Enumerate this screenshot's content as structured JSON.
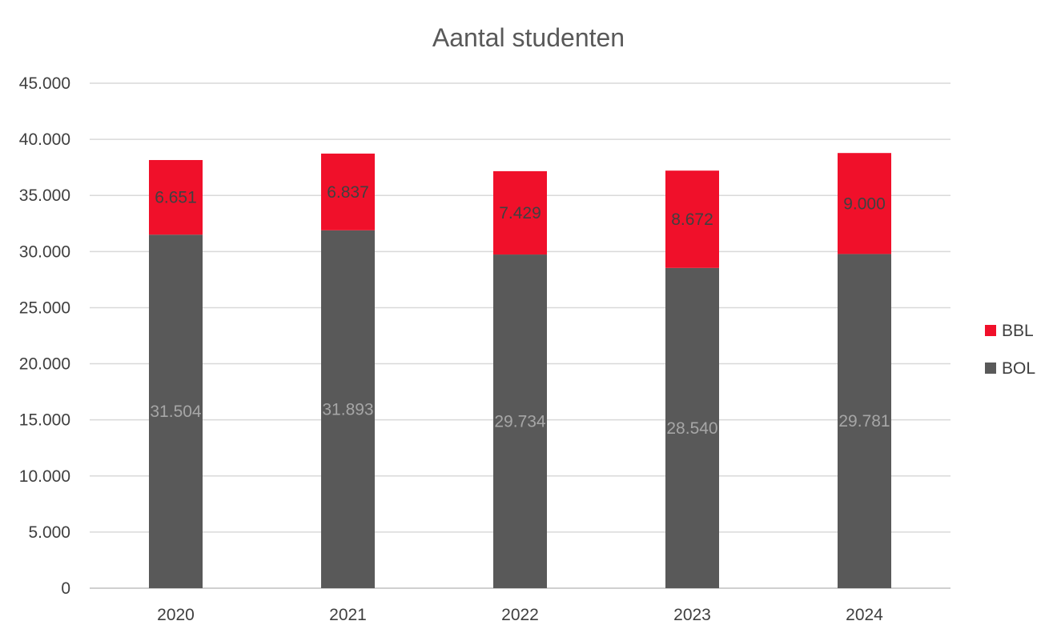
{
  "chart_data": {
    "type": "bar",
    "stacked": true,
    "title": "Aantal studenten",
    "categories": [
      "2020",
      "2021",
      "2022",
      "2023",
      "2024"
    ],
    "series": [
      {
        "name": "BOL",
        "values": [
          31504,
          31893,
          29734,
          28540,
          29781
        ],
        "labels": [
          "31.504",
          "31.893",
          "29.734",
          "28.540",
          "29.781"
        ],
        "color": "#595959"
      },
      {
        "name": "BBL",
        "values": [
          6651,
          6837,
          7429,
          8672,
          9000
        ],
        "labels": [
          "6.651",
          "6.837",
          "7.429",
          "8.672",
          "9.000"
        ],
        "color": "#F0102A"
      }
    ],
    "ylim": [
      0,
      45000
    ],
    "yticks": [
      0,
      5000,
      10000,
      15000,
      20000,
      25000,
      30000,
      35000,
      40000,
      45000
    ],
    "ytick_labels": [
      "0",
      "5.000",
      "10.000",
      "15.000",
      "20.000",
      "25.000",
      "30.000",
      "35.000",
      "40.000",
      "45.000"
    ],
    "grid": true,
    "legend": {
      "position": "right",
      "entries": [
        "BBL",
        "BOL"
      ]
    }
  }
}
